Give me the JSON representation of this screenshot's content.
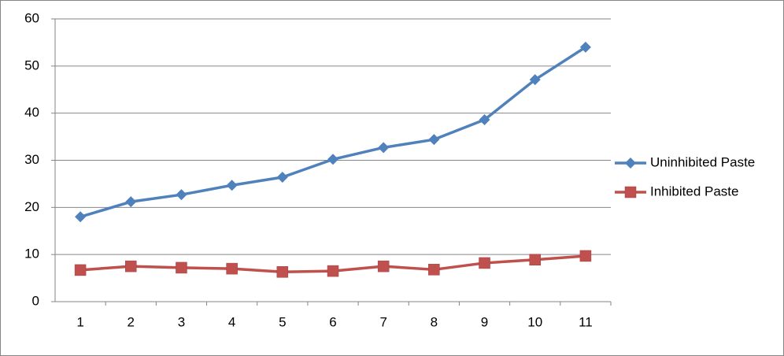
{
  "chart_data": {
    "type": "line",
    "categories": [
      "1",
      "2",
      "3",
      "4",
      "5",
      "6",
      "7",
      "8",
      "9",
      "10",
      "11"
    ],
    "series": [
      {
        "name": "Uninhibited Paste",
        "color": "#4f81bd",
        "marker": "diamond",
        "values": [
          18.0,
          21.2,
          22.7,
          24.7,
          26.4,
          30.2,
          32.7,
          34.4,
          38.6,
          47.1,
          54.0
        ]
      },
      {
        "name": "Inhibited Paste",
        "color": "#c0504d",
        "marker": "square",
        "values": [
          6.7,
          7.5,
          7.2,
          7.0,
          6.3,
          6.5,
          7.5,
          6.8,
          8.2,
          8.9,
          9.7
        ]
      }
    ],
    "ylim": [
      0,
      60
    ],
    "yticks": [
      0,
      10,
      20,
      30,
      40,
      50,
      60
    ],
    "grid": true,
    "legend": "right"
  }
}
